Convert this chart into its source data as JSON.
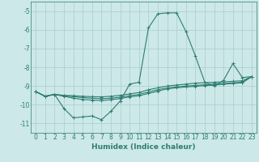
{
  "x": [
    0,
    1,
    2,
    3,
    4,
    5,
    6,
    7,
    8,
    9,
    10,
    11,
    12,
    13,
    14,
    15,
    16,
    17,
    18,
    19,
    20,
    21,
    22,
    23
  ],
  "line1": [
    -9.3,
    -9.55,
    -9.45,
    -10.2,
    -10.7,
    -10.65,
    -10.6,
    -10.8,
    -10.35,
    -9.8,
    -8.9,
    -8.8,
    -5.9,
    -5.15,
    -5.1,
    -5.1,
    -6.1,
    -7.4,
    -8.8,
    -9.0,
    -8.7,
    -7.8,
    -8.55,
    -8.5
  ],
  "line2": [
    -9.3,
    -9.55,
    -9.45,
    -9.5,
    -9.52,
    -9.55,
    -9.57,
    -9.58,
    -9.55,
    -9.5,
    -9.42,
    -9.35,
    -9.2,
    -9.1,
    -9.0,
    -8.95,
    -8.9,
    -8.85,
    -8.82,
    -8.8,
    -8.78,
    -8.75,
    -8.72,
    -8.5
  ],
  "line3": [
    -9.3,
    -9.55,
    -9.45,
    -9.52,
    -9.57,
    -9.62,
    -9.65,
    -9.68,
    -9.65,
    -9.6,
    -9.52,
    -9.45,
    -9.32,
    -9.2,
    -9.1,
    -9.05,
    -9.0,
    -8.97,
    -8.93,
    -8.9,
    -8.87,
    -8.83,
    -8.8,
    -8.5
  ],
  "line4": [
    -9.3,
    -9.55,
    -9.45,
    -9.55,
    -9.65,
    -9.72,
    -9.75,
    -9.78,
    -9.73,
    -9.67,
    -9.58,
    -9.52,
    -9.4,
    -9.28,
    -9.15,
    -9.1,
    -9.05,
    -9.02,
    -8.98,
    -8.95,
    -8.9,
    -8.87,
    -8.83,
    -8.5
  ],
  "color": "#2e7d72",
  "bgcolor": "#cce8e8",
  "grid_color": "#aacccc",
  "xlabel": "Humidex (Indice chaleur)",
  "xlim": [
    -0.5,
    23.5
  ],
  "ylim": [
    -11.5,
    -4.5
  ],
  "yticks": [
    -5,
    -6,
    -7,
    -8,
    -9,
    -10,
    -11
  ],
  "xticks": [
    0,
    1,
    2,
    3,
    4,
    5,
    6,
    7,
    8,
    9,
    10,
    11,
    12,
    13,
    14,
    15,
    16,
    17,
    18,
    19,
    20,
    21,
    22,
    23
  ],
  "label_fontsize": 6.5,
  "tick_fontsize": 5.5
}
